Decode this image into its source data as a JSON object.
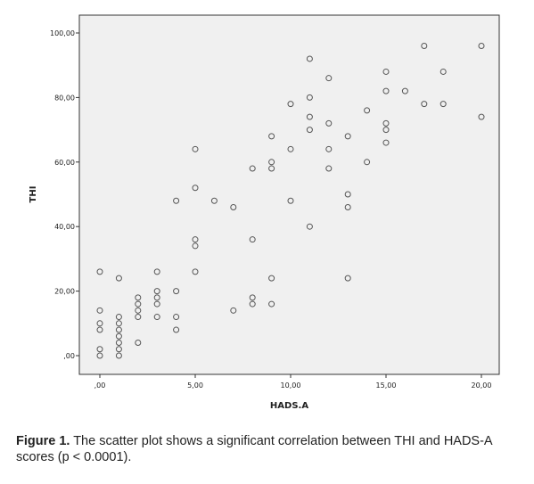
{
  "figure": {
    "caption_label": "Figure 1.",
    "caption_text": " The scatter plot shows a significant correlation between THI and HADS-A scores (p < 0.0001)."
  },
  "chart_data": {
    "type": "scatter",
    "xlabel": "HADS.A",
    "ylabel": "THI",
    "xlim": [
      0,
      20
    ],
    "ylim": [
      0,
      100
    ],
    "grid": false,
    "legend": "none",
    "colors": {
      "plot_bg": "#f0f0f0",
      "marker": "#555555",
      "axis": "#333333"
    },
    "x_ticks": [
      0,
      5,
      10,
      15,
      20
    ],
    "x_tick_labels": [
      ",00",
      "5,00",
      "10,00",
      "15,00",
      "20,00"
    ],
    "y_ticks": [
      0,
      20,
      40,
      60,
      80,
      100
    ],
    "y_tick_labels": [
      ",00",
      "20,00",
      "40,00",
      "60,00",
      "80,00",
      "100,00"
    ],
    "points": [
      [
        0,
        26
      ],
      [
        0,
        14
      ],
      [
        0,
        10
      ],
      [
        0,
        8
      ],
      [
        0,
        2
      ],
      [
        0,
        0
      ],
      [
        1,
        24
      ],
      [
        1,
        12
      ],
      [
        1,
        10
      ],
      [
        1,
        8
      ],
      [
        1,
        6
      ],
      [
        1,
        4
      ],
      [
        1,
        2
      ],
      [
        1,
        0
      ],
      [
        2,
        18
      ],
      [
        2,
        16
      ],
      [
        2,
        14
      ],
      [
        2,
        12
      ],
      [
        2,
        4
      ],
      [
        3,
        26
      ],
      [
        3,
        20
      ],
      [
        3,
        18
      ],
      [
        3,
        16
      ],
      [
        3,
        12
      ],
      [
        4,
        48
      ],
      [
        4,
        20
      ],
      [
        4,
        12
      ],
      [
        4,
        8
      ],
      [
        5,
        64
      ],
      [
        5,
        52
      ],
      [
        5,
        36
      ],
      [
        5,
        34
      ],
      [
        5,
        26
      ],
      [
        6,
        48
      ],
      [
        7,
        46
      ],
      [
        7,
        14
      ],
      [
        8,
        58
      ],
      [
        8,
        36
      ],
      [
        8,
        18
      ],
      [
        8,
        16
      ],
      [
        9,
        68
      ],
      [
        9,
        60
      ],
      [
        9,
        58
      ],
      [
        9,
        24
      ],
      [
        9,
        16
      ],
      [
        10,
        78
      ],
      [
        10,
        64
      ],
      [
        10,
        48
      ],
      [
        11,
        92
      ],
      [
        11,
        80
      ],
      [
        11,
        74
      ],
      [
        11,
        70
      ],
      [
        11,
        40
      ],
      [
        12,
        86
      ],
      [
        12,
        72
      ],
      [
        12,
        64
      ],
      [
        12,
        58
      ],
      [
        13,
        68
      ],
      [
        13,
        50
      ],
      [
        13,
        46
      ],
      [
        13,
        24
      ],
      [
        14,
        76
      ],
      [
        14,
        60
      ],
      [
        15,
        88
      ],
      [
        15,
        82
      ],
      [
        15,
        72
      ],
      [
        15,
        70
      ],
      [
        15,
        66
      ],
      [
        16,
        82
      ],
      [
        17,
        96
      ],
      [
        17,
        78
      ],
      [
        18,
        88
      ],
      [
        18,
        78
      ],
      [
        20,
        96
      ],
      [
        20,
        74
      ]
    ]
  }
}
